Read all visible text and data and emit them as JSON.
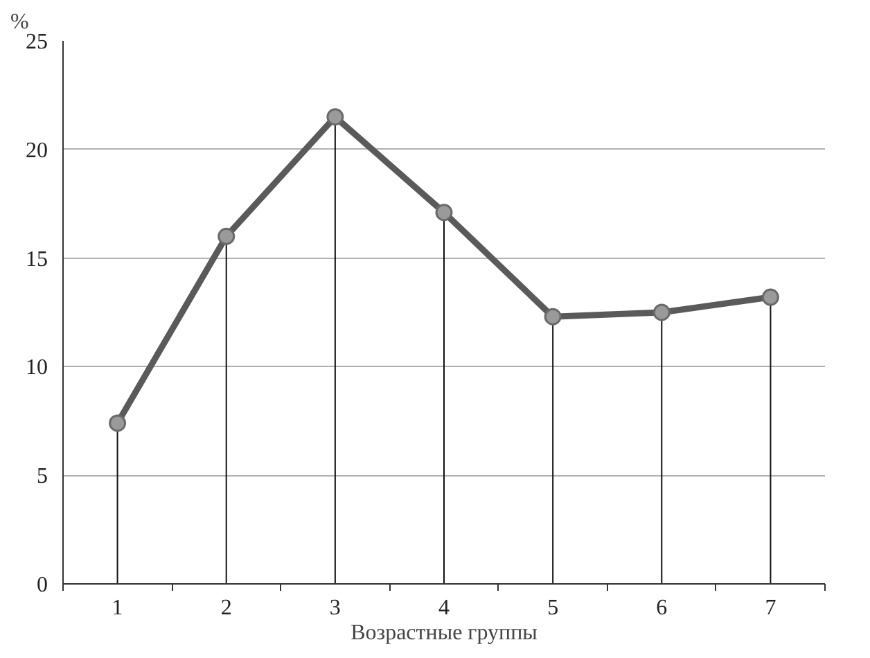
{
  "chart_data": {
    "type": "line",
    "xlabel": "Возрастные группы",
    "ylabel": "%",
    "categories": [
      "1",
      "2",
      "3",
      "4",
      "5",
      "6",
      "7"
    ],
    "series": [
      {
        "color": "#5a5a5a",
        "values": [
          7.4,
          16.0,
          21.5,
          17.1,
          12.3,
          12.5,
          13.2
        ],
        "marker": "none"
      },
      {
        "type": "lollipop",
        "color": "#9a9a9a",
        "values": [
          7.4,
          16.0,
          21.5,
          17.1,
          12.3,
          12.5,
          13.2
        ],
        "marker": "circle"
      }
    ],
    "ylim": [
      0,
      25
    ],
    "yticks": [
      0,
      5,
      10,
      15,
      20,
      25
    ],
    "grid": "y"
  }
}
